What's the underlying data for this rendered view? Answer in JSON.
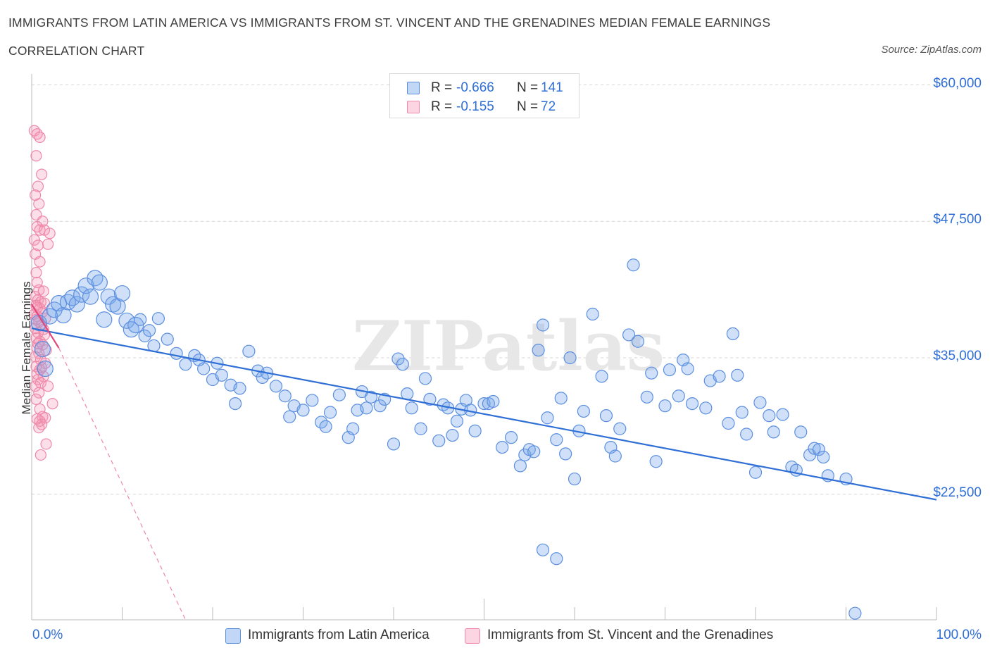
{
  "header": {
    "title": "IMMIGRANTS FROM LATIN AMERICA VS IMMIGRANTS FROM ST. VINCENT AND THE GRENADINES MEDIAN FEMALE EARNINGS",
    "subtitle": "CORRELATION CHART",
    "source": "Source: ZipAtlas.com"
  },
  "legend": {
    "rows": [
      {
        "r_label": "R =",
        "r_value": "-0.666",
        "n_label": "N =",
        "n_value": "141"
      },
      {
        "r_label": "R =",
        "r_value": "-0.155",
        "n_label": "N =",
        "n_value": "72"
      }
    ]
  },
  "bottom_legend": [
    {
      "label": "Immigrants from Latin America"
    },
    {
      "label": "Immigrants from St. Vincent and the Grenadines"
    }
  ],
  "axes": {
    "ylabel": "Median Female Earnings",
    "x_min_label": "0.0%",
    "x_max_label": "100.0%",
    "y_ticks": [
      "$60,000",
      "$47,500",
      "$35,000",
      "$22,500"
    ]
  },
  "watermark": "ZIPatlas",
  "colors": {
    "blue": "#2f6fd6",
    "blue_fill": "rgba(120,165,235,0.35)",
    "blue_stroke": "#5b8fe0",
    "pink": "#e0467a",
    "pink_fill": "rgba(245,150,180,0.30)",
    "pink_stroke": "#ef88aa"
  },
  "chart_data": {
    "type": "scatter",
    "xlim": [
      0,
      100
    ],
    "ylim": [
      11000,
      61000
    ],
    "y_tick_values": [
      60000,
      47500,
      35000,
      22500
    ],
    "series": [
      {
        "name": "Immigrants from Latin America",
        "R": -0.666,
        "N": 141,
        "trend": {
          "x0": 0,
          "y0": 37700,
          "x1": 100,
          "y1": 22000
        },
        "points": [
          [
            0.8,
            38200
          ],
          [
            1.2,
            35800
          ],
          [
            1.5,
            34000
          ],
          [
            2.0,
            38800
          ],
          [
            2.5,
            39400
          ],
          [
            3.0,
            40000
          ],
          [
            3.5,
            38900
          ],
          [
            4.0,
            40100
          ],
          [
            4.5,
            40500
          ],
          [
            5.0,
            39900
          ],
          [
            5.5,
            40800
          ],
          [
            6.0,
            41600
          ],
          [
            6.5,
            40600
          ],
          [
            7.0,
            42300
          ],
          [
            7.5,
            41900
          ],
          [
            8.0,
            38500
          ],
          [
            8.5,
            40600
          ],
          [
            9.0,
            39900
          ],
          [
            9.5,
            39700
          ],
          [
            10.0,
            40900
          ],
          [
            10.5,
            38400
          ],
          [
            11.0,
            37600
          ],
          [
            11.5,
            38000
          ],
          [
            12.0,
            38500
          ],
          [
            12.5,
            37000
          ],
          [
            13.0,
            37500
          ],
          [
            13.5,
            36100
          ],
          [
            14.0,
            38600
          ],
          [
            15.0,
            36700
          ],
          [
            16.0,
            35400
          ],
          [
            17.0,
            34400
          ],
          [
            18.0,
            35200
          ],
          [
            18.5,
            34800
          ],
          [
            19.0,
            34000
          ],
          [
            20.0,
            33000
          ],
          [
            20.5,
            34500
          ],
          [
            21.0,
            33400
          ],
          [
            22.0,
            32500
          ],
          [
            22.5,
            30800
          ],
          [
            23.0,
            32200
          ],
          [
            24.0,
            35600
          ],
          [
            25.0,
            33800
          ],
          [
            25.5,
            33200
          ],
          [
            26.0,
            33600
          ],
          [
            27.0,
            32400
          ],
          [
            28.0,
            31500
          ],
          [
            28.5,
            29600
          ],
          [
            29.0,
            30600
          ],
          [
            30.0,
            30200
          ],
          [
            31.0,
            31100
          ],
          [
            32.0,
            29100
          ],
          [
            32.5,
            28700
          ],
          [
            33.0,
            30000
          ],
          [
            34.0,
            31600
          ],
          [
            35.0,
            27700
          ],
          [
            35.5,
            28500
          ],
          [
            36.0,
            30200
          ],
          [
            36.5,
            31900
          ],
          [
            37.0,
            30400
          ],
          [
            37.5,
            31400
          ],
          [
            38.5,
            30600
          ],
          [
            39.0,
            31200
          ],
          [
            40.0,
            27100
          ],
          [
            40.5,
            34900
          ],
          [
            41.0,
            34400
          ],
          [
            41.5,
            31700
          ],
          [
            42.0,
            30400
          ],
          [
            43.0,
            28500
          ],
          [
            43.5,
            33100
          ],
          [
            44.0,
            31200
          ],
          [
            45.0,
            27400
          ],
          [
            45.5,
            30700
          ],
          [
            46.0,
            30400
          ],
          [
            46.5,
            27900
          ],
          [
            47.0,
            29200
          ],
          [
            47.5,
            30300
          ],
          [
            48.0,
            31100
          ],
          [
            48.5,
            30200
          ],
          [
            49.0,
            28300
          ],
          [
            50.0,
            30800
          ],
          [
            50.5,
            30800
          ],
          [
            51.0,
            31000
          ],
          [
            52.0,
            26800
          ],
          [
            53.0,
            27700
          ],
          [
            54.0,
            25100
          ],
          [
            54.5,
            26100
          ],
          [
            55.0,
            26600
          ],
          [
            55.5,
            26400
          ],
          [
            56.0,
            35700
          ],
          [
            56.5,
            38000
          ],
          [
            57.0,
            29500
          ],
          [
            58.0,
            27500
          ],
          [
            58.5,
            31300
          ],
          [
            59.0,
            26200
          ],
          [
            59.5,
            35000
          ],
          [
            60.0,
            23900
          ],
          [
            60.5,
            28300
          ],
          [
            61.0,
            30100
          ],
          [
            62.0,
            39000
          ],
          [
            63.0,
            33300
          ],
          [
            63.5,
            29700
          ],
          [
            64.0,
            26800
          ],
          [
            64.5,
            26000
          ],
          [
            65.0,
            28500
          ],
          [
            66.0,
            37100
          ],
          [
            66.5,
            43500
          ],
          [
            67.0,
            36500
          ],
          [
            68.0,
            31400
          ],
          [
            68.5,
            33600
          ],
          [
            69.0,
            25500
          ],
          [
            70.0,
            30600
          ],
          [
            70.5,
            33900
          ],
          [
            71.5,
            31500
          ],
          [
            72.0,
            34800
          ],
          [
            72.5,
            34000
          ],
          [
            73.0,
            30800
          ],
          [
            74.5,
            30400
          ],
          [
            75.0,
            32900
          ],
          [
            76.0,
            33300
          ],
          [
            77.0,
            29000
          ],
          [
            77.5,
            37200
          ],
          [
            78.0,
            33400
          ],
          [
            78.5,
            30000
          ],
          [
            79.0,
            28000
          ],
          [
            80.0,
            24500
          ],
          [
            80.5,
            30900
          ],
          [
            81.5,
            29700
          ],
          [
            82.0,
            28200
          ],
          [
            83.0,
            29800
          ],
          [
            84.0,
            25000
          ],
          [
            84.5,
            24700
          ],
          [
            85.0,
            28200
          ],
          [
            86.0,
            26100
          ],
          [
            86.5,
            26700
          ],
          [
            87.0,
            26600
          ],
          [
            87.5,
            25900
          ],
          [
            88.0,
            24200
          ],
          [
            90.0,
            23900
          ],
          [
            56.5,
            17400
          ],
          [
            58.0,
            16600
          ],
          [
            91.0,
            11600
          ]
        ]
      },
      {
        "name": "Immigrants from St. Vincent and the Grenadines",
        "R": -0.155,
        "N": 72,
        "trend_solid": {
          "x0": 0,
          "y0": 39900,
          "x1": 3,
          "y1": 35900
        },
        "trend_dashed": {
          "x0": 3,
          "y0": 35900,
          "x1": 17,
          "y1": 11000
        },
        "points": [
          [
            0.3,
            55800
          ],
          [
            0.6,
            55500
          ],
          [
            0.9,
            55200
          ],
          [
            0.5,
            53500
          ],
          [
            1.1,
            51800
          ],
          [
            0.7,
            50700
          ],
          [
            0.4,
            49900
          ],
          [
            0.8,
            49100
          ],
          [
            0.5,
            48100
          ],
          [
            1.2,
            47500
          ],
          [
            0.6,
            47000
          ],
          [
            0.9,
            46700
          ],
          [
            1.4,
            46700
          ],
          [
            2.0,
            46400
          ],
          [
            0.3,
            45800
          ],
          [
            0.7,
            45300
          ],
          [
            1.8,
            45400
          ],
          [
            0.4,
            44500
          ],
          [
            0.9,
            43800
          ],
          [
            0.5,
            42800
          ],
          [
            0.6,
            41900
          ],
          [
            0.8,
            41200
          ],
          [
            1.3,
            41100
          ],
          [
            0.4,
            40600
          ],
          [
            0.7,
            40300
          ],
          [
            1.0,
            40100
          ],
          [
            0.5,
            39800
          ],
          [
            0.9,
            39500
          ],
          [
            1.2,
            39200
          ],
          [
            0.3,
            39000
          ],
          [
            0.6,
            38800
          ],
          [
            1.5,
            38600
          ],
          [
            0.8,
            38300
          ],
          [
            1.1,
            38000
          ],
          [
            0.4,
            37700
          ],
          [
            0.7,
            37300
          ],
          [
            1.4,
            37100
          ],
          [
            0.5,
            36800
          ],
          [
            0.9,
            36500
          ],
          [
            1.2,
            36200
          ],
          [
            0.6,
            35900
          ],
          [
            1.6,
            35700
          ],
          [
            0.8,
            35400
          ],
          [
            0.4,
            35100
          ],
          [
            1.0,
            34800
          ],
          [
            1.5,
            34500
          ],
          [
            0.5,
            34200
          ],
          [
            0.9,
            33900
          ],
          [
            0.6,
            33500
          ],
          [
            1.3,
            33300
          ],
          [
            0.7,
            33000
          ],
          [
            1.0,
            32700
          ],
          [
            0.4,
            32400
          ],
          [
            1.8,
            32400
          ],
          [
            0.8,
            31800
          ],
          [
            0.5,
            31200
          ],
          [
            2.3,
            30800
          ],
          [
            0.9,
            30300
          ],
          [
            1.2,
            29600
          ],
          [
            0.6,
            29400
          ],
          [
            0.9,
            29200
          ],
          [
            1.5,
            29500
          ],
          [
            1.1,
            28900
          ],
          [
            0.8,
            28600
          ],
          [
            1.6,
            27100
          ],
          [
            1.0,
            26100
          ],
          [
            0.5,
            38500
          ],
          [
            1.4,
            40000
          ],
          [
            0.7,
            36300
          ],
          [
            1.1,
            34100
          ],
          [
            0.6,
            39600
          ],
          [
            1.3,
            37600
          ]
        ]
      }
    ]
  }
}
